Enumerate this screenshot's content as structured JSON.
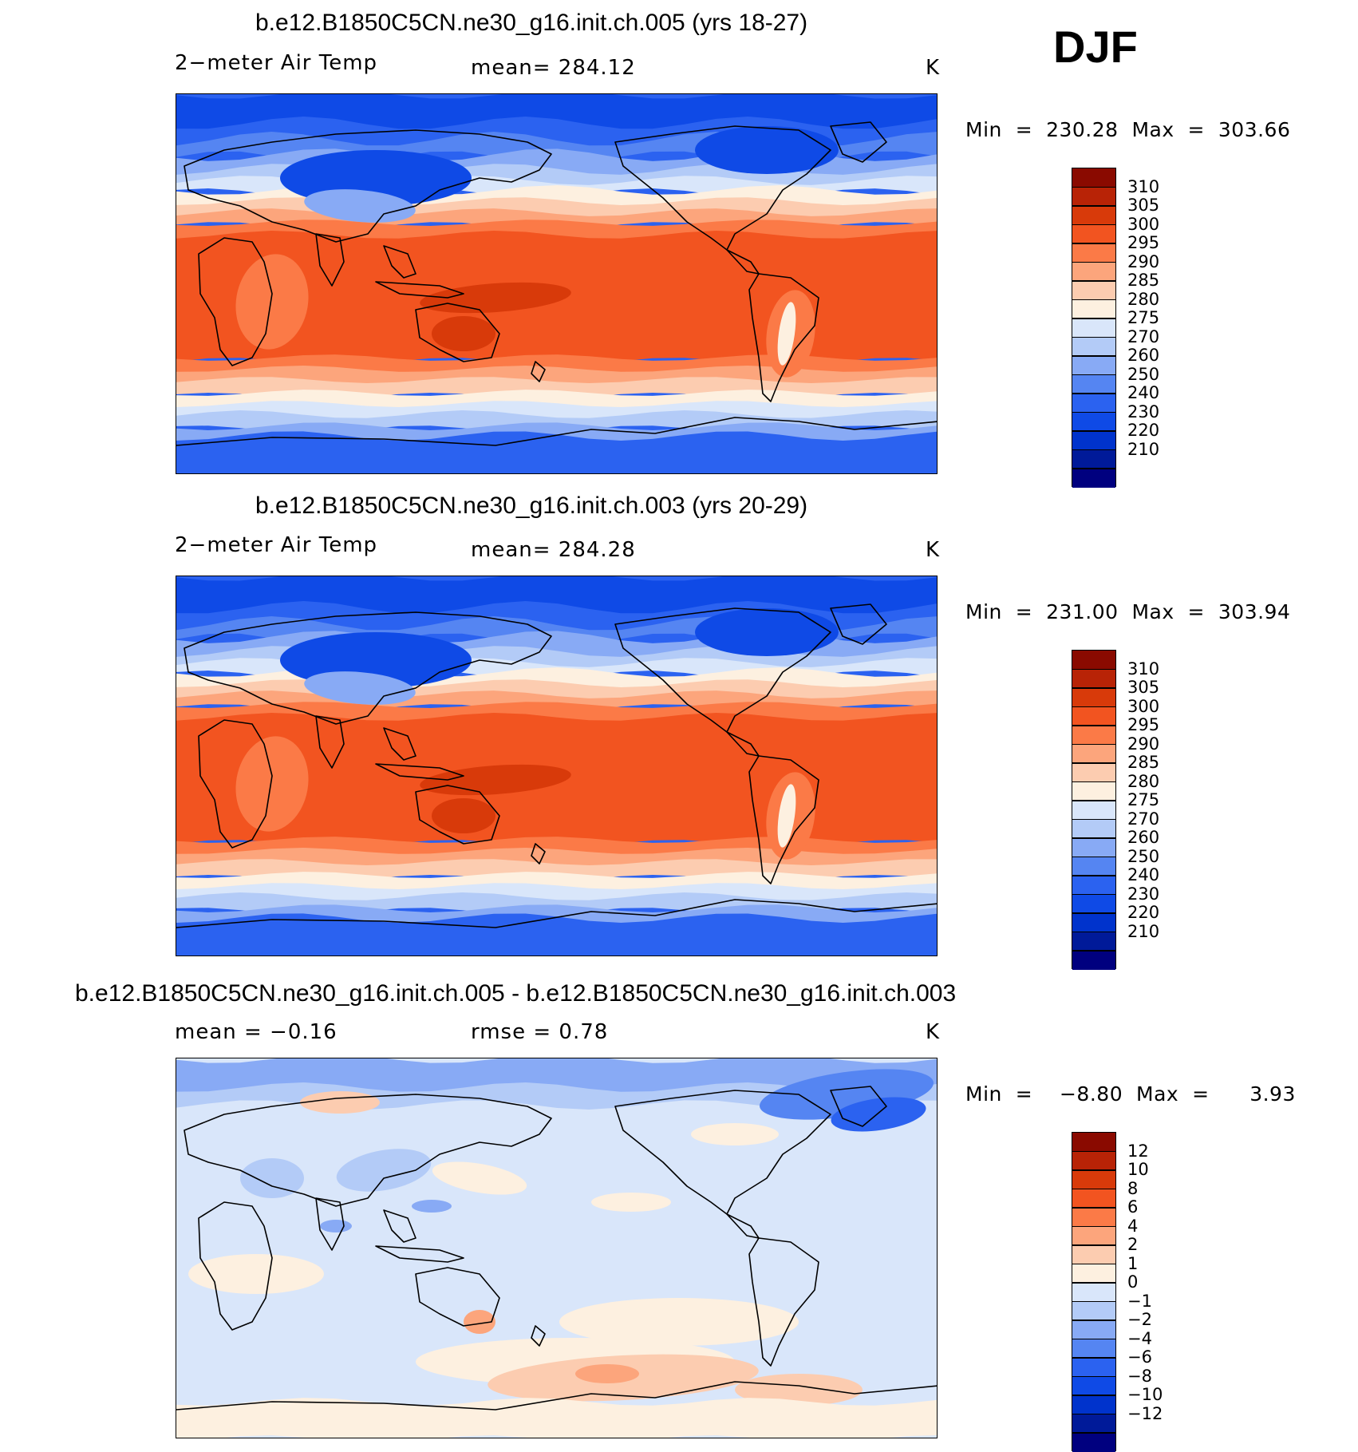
{
  "season": "DJF",
  "colors": {
    "abs_palette": [
      "#00007f",
      "#001a99",
      "#0033cc",
      "#0f4ae6",
      "#2b62f0",
      "#5585f2",
      "#88aaf5",
      "#b3cbf7",
      "#d9e6fa",
      "#fdf0e0",
      "#fcccb0",
      "#fca57c",
      "#fb7a47",
      "#f25420",
      "#d83a0a",
      "#b82306",
      "#8a0a00"
    ],
    "diff_palette": [
      "#00007f",
      "#001a99",
      "#0033cc",
      "#0f4ae6",
      "#2b62f0",
      "#5585f2",
      "#88aaf5",
      "#b3cbf7",
      "#d9e6fa",
      "#fdf0e0",
      "#fcccb0",
      "#fca57c",
      "#fb7a47",
      "#f25420",
      "#d83a0a",
      "#b82306",
      "#8a0a00"
    ]
  },
  "panels": [
    {
      "title": "b.e12.B1850C5CN.ne30_g16.init.ch.005 (yrs 18-27)",
      "left_label": "2−meter Air Temp",
      "center_label": "mean=  284.12",
      "units": "K",
      "minmax": "Min  =  230.28  Max  =  303.66",
      "map_type": "absolute",
      "colorbar_labels": [
        "310",
        "305",
        "300",
        "295",
        "290",
        "285",
        "280",
        "275",
        "270",
        "260",
        "250",
        "240",
        "230",
        "220",
        "210"
      ]
    },
    {
      "title": "b.e12.B1850C5CN.ne30_g16.init.ch.003 (yrs 20-29)",
      "left_label": "2−meter Air Temp",
      "center_label": "mean=  284.28",
      "units": "K",
      "minmax": "Min  =  231.00  Max  =  303.94",
      "map_type": "absolute",
      "colorbar_labels": [
        "310",
        "305",
        "300",
        "295",
        "290",
        "285",
        "280",
        "275",
        "270",
        "260",
        "250",
        "240",
        "230",
        "220",
        "210"
      ]
    },
    {
      "title": "b.e12.B1850C5CN.ne30_g16.init.ch.005 - b.e12.B1850C5CN.ne30_g16.init.ch.003",
      "left_label": "mean  =    −0.16",
      "center_label": "rmse  =     0.78",
      "units": "K",
      "minmax": "Min  =    −8.80  Max  =      3.93",
      "map_type": "difference",
      "colorbar_labels": [
        "12",
        "10",
        "8",
        "6",
        "4",
        "2",
        "1",
        "0",
        "−1",
        "−2",
        "−4",
        "−6",
        "−8",
        "−10",
        "−12"
      ]
    }
  ]
}
